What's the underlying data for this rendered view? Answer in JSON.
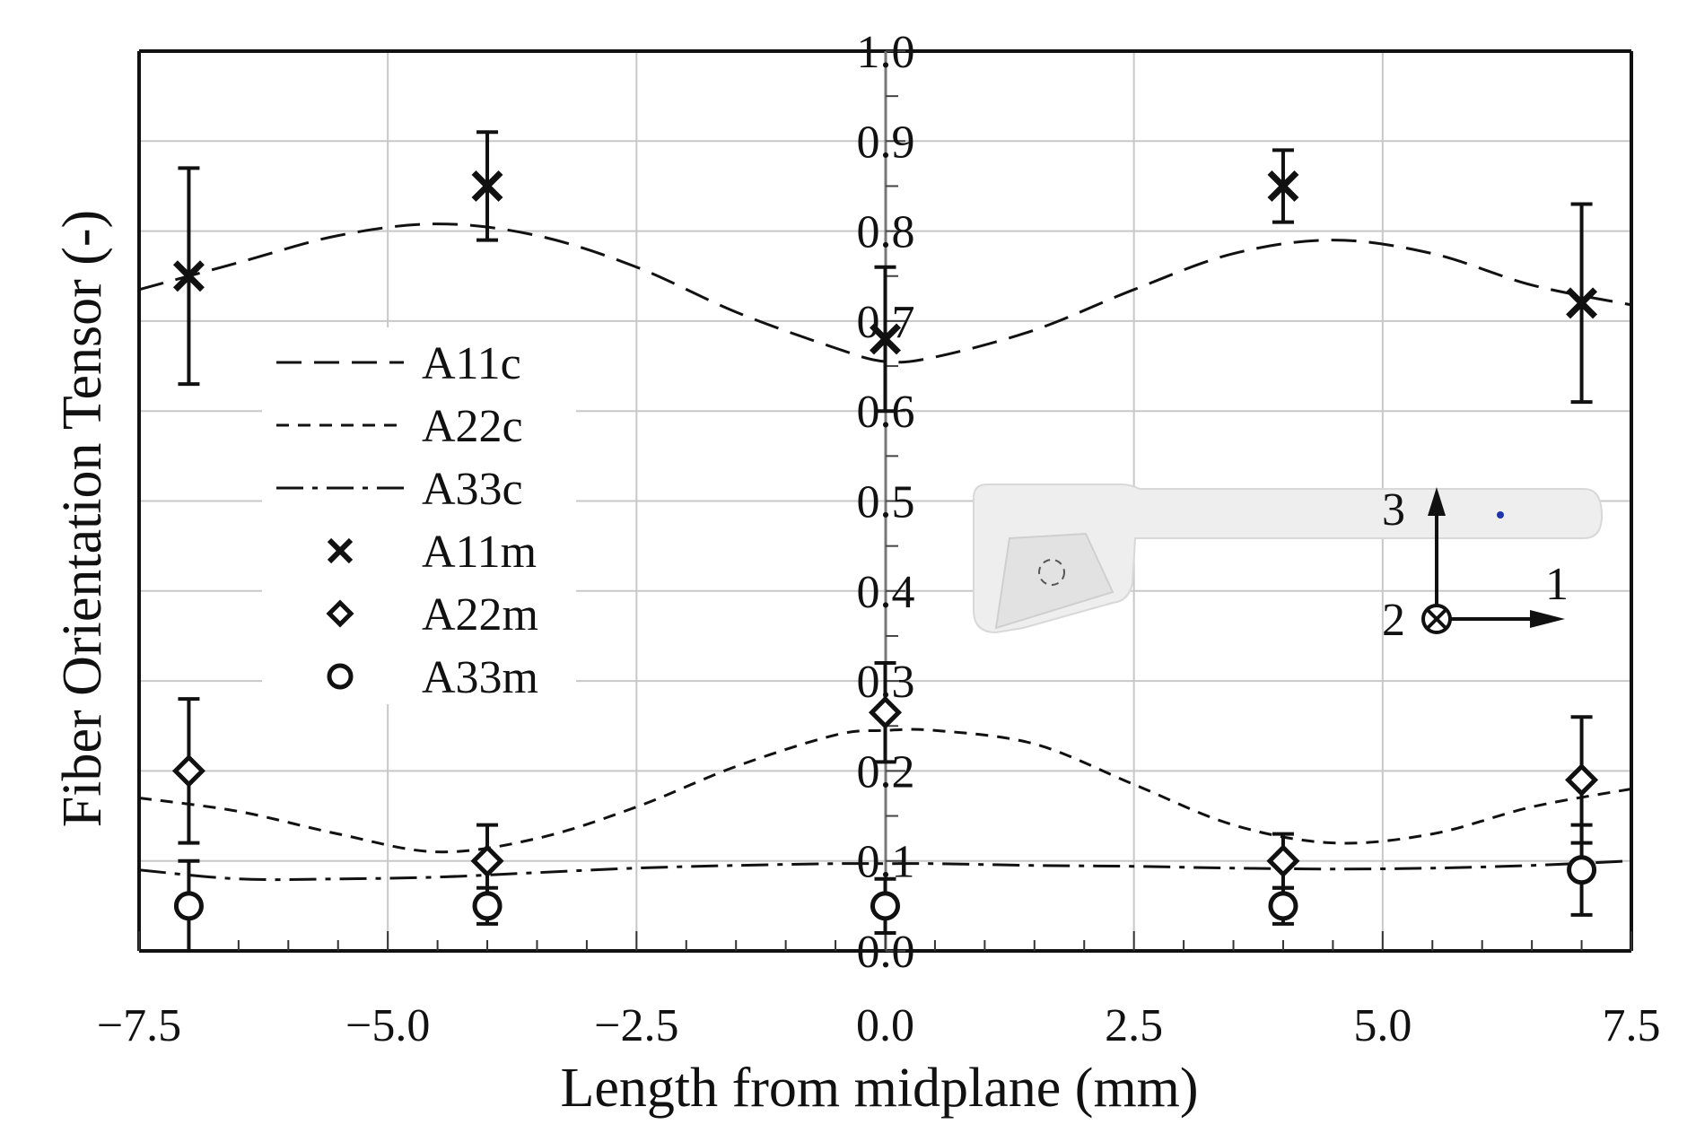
{
  "chart_data": {
    "type": "scatter",
    "xlabel": "Length from midplane (mm)",
    "ylabel": "Fiber Orientation Tensor (-)",
    "xlim": [
      -7.5,
      7.5
    ],
    "ylim": [
      0.0,
      1.0
    ],
    "x_ticks": [
      "−7.5",
      "−5.0",
      "−2.5",
      "0.0",
      "2.5",
      "5.0",
      "7.5"
    ],
    "x_tick_values": [
      -7.5,
      -5.0,
      -2.5,
      0.0,
      2.5,
      5.0,
      7.5
    ],
    "y_ticks": [
      "0.0",
      "0.1",
      "0.2",
      "0.3",
      "0.4",
      "0.5",
      "0.6",
      "0.7",
      "0.8",
      "0.9",
      "1.0"
    ],
    "y_tick_values": [
      0.0,
      0.1,
      0.2,
      0.3,
      0.4,
      0.5,
      0.6,
      0.7,
      0.8,
      0.9,
      1.0
    ],
    "grid": true,
    "legend_position": "center-left",
    "curves": [
      {
        "name": "A11c",
        "dash": "long-dash",
        "x": [
          -7.5,
          -6.5,
          -5.5,
          -4.5,
          -3.5,
          -2.5,
          -1.5,
          -0.5,
          0.0,
          0.5,
          1.5,
          2.5,
          3.5,
          4.5,
          5.5,
          6.5,
          7.5
        ],
        "y": [
          0.735,
          0.765,
          0.795,
          0.808,
          0.795,
          0.76,
          0.71,
          0.67,
          0.655,
          0.66,
          0.69,
          0.735,
          0.775,
          0.79,
          0.775,
          0.74,
          0.718
        ]
      },
      {
        "name": "A22c",
        "dash": "short-dash",
        "x": [
          -7.5,
          -6.5,
          -5.5,
          -4.5,
          -3.5,
          -2.5,
          -1.5,
          -0.5,
          0.0,
          0.5,
          1.5,
          2.5,
          3.5,
          4.5,
          5.5,
          6.5,
          7.5
        ],
        "y": [
          0.17,
          0.155,
          0.13,
          0.11,
          0.125,
          0.16,
          0.205,
          0.24,
          0.245,
          0.245,
          0.23,
          0.185,
          0.14,
          0.12,
          0.13,
          0.16,
          0.18
        ]
      },
      {
        "name": "A33c",
        "dash": "dash-dot",
        "x": [
          -7.5,
          -6.5,
          -5.5,
          -4.5,
          -3.5,
          -2.5,
          -1.5,
          -0.5,
          0.0,
          0.5,
          1.5,
          2.5,
          3.5,
          4.5,
          5.5,
          6.5,
          7.5
        ],
        "y": [
          0.09,
          0.08,
          0.08,
          0.082,
          0.087,
          0.092,
          0.095,
          0.097,
          0.097,
          0.097,
          0.095,
          0.094,
          0.092,
          0.091,
          0.092,
          0.095,
          0.1
        ]
      }
    ],
    "points": [
      {
        "name": "A11m",
        "marker": "x",
        "x": [
          -7.0,
          -4.0,
          0.0,
          4.0,
          7.0
        ],
        "y": [
          0.75,
          0.85,
          0.68,
          0.85,
          0.72
        ],
        "err": [
          0.12,
          0.06,
          0.08,
          0.04,
          0.11
        ]
      },
      {
        "name": "A22m",
        "marker": "diamond",
        "x": [
          -7.0,
          -4.0,
          0.0,
          4.0,
          7.0
        ],
        "y": [
          0.2,
          0.1,
          0.265,
          0.1,
          0.19
        ],
        "err": [
          0.08,
          0.04,
          0.055,
          0.03,
          0.07
        ]
      },
      {
        "name": "A33m",
        "marker": "circle",
        "x": [
          -7.0,
          -4.0,
          0.0,
          4.0,
          7.0
        ],
        "y": [
          0.05,
          0.05,
          0.05,
          0.05,
          0.09
        ],
        "err": [
          0.05,
          0.02,
          0.03,
          0.02,
          0.05
        ]
      }
    ],
    "legend": [
      "A11c",
      "A22c",
      "A33c",
      "A11m",
      "A22m",
      "A33m"
    ]
  },
  "inset": {
    "axis_3_label": "3",
    "axis_2_label": "2",
    "axis_1_label": "1",
    "part_color": "#efefef",
    "dot_color": "#2233aa"
  }
}
